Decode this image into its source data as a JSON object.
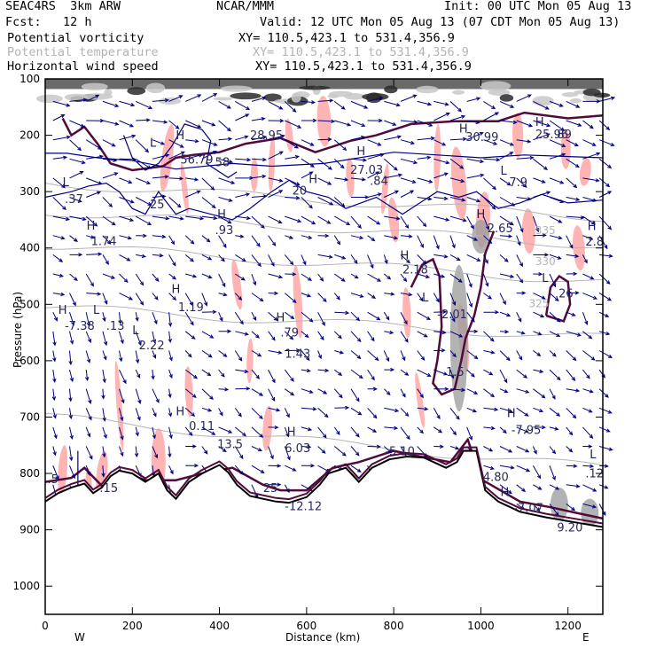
{
  "header": {
    "model": "SEAC4RS  3km ARW",
    "org": "NCAR/MMM",
    "init": "Init: 00 UTC Mon 05 Aug 13",
    "fcst": "Fcst:   12 h",
    "valid": "Valid: 12 UTC Mon 05 Aug 13 (07 CDT Mon 05 Aug 13)",
    "fields": [
      {
        "name": "Potential vorticity",
        "xy": "XY= 110.5,423.1 to 531.4,356.9",
        "color": "#000000"
      },
      {
        "name": "Potential temperature",
        "xy": "XY= 110.5,423.1 to 531.4,356.9",
        "color": "#b4b4b4"
      },
      {
        "name": "Horizontal wind speed",
        "xy": "XY= 110.5,423.1 to 531.4,356.9",
        "color": "#000000"
      }
    ]
  },
  "colors": {
    "pv_fill": "#ffb4b4",
    "pv_contour": "#500a3c",
    "theta": "#b4b4b4",
    "wind": "#000080",
    "terrain": "#000000",
    "shade": "#9a9a9a"
  },
  "chart_data": {
    "type": "cross-section",
    "ylabel": "Pressure (hPa)",
    "xlabel": "Distance (km)",
    "xlim": [
      0,
      1280
    ],
    "ylim": [
      100,
      1050
    ],
    "xticks": [
      0,
      200,
      400,
      600,
      800,
      1000,
      1200
    ],
    "yticks": [
      100,
      200,
      300,
      400,
      500,
      600,
      700,
      800,
      900,
      1000
    ],
    "x_end_labels": {
      "left": "W",
      "right": "E"
    },
    "terrain_km_hpa": [
      [
        0,
        850
      ],
      [
        30,
        835
      ],
      [
        60,
        825
      ],
      [
        90,
        818
      ],
      [
        110,
        835
      ],
      [
        130,
        825
      ],
      [
        150,
        805
      ],
      [
        170,
        795
      ],
      [
        200,
        800
      ],
      [
        230,
        815
      ],
      [
        260,
        800
      ],
      [
        280,
        830
      ],
      [
        300,
        845
      ],
      [
        330,
        815
      ],
      [
        360,
        800
      ],
      [
        400,
        785
      ],
      [
        420,
        798
      ],
      [
        440,
        820
      ],
      [
        470,
        840
      ],
      [
        500,
        845
      ],
      [
        530,
        850
      ],
      [
        560,
        852
      ],
      [
        600,
        842
      ],
      [
        630,
        820
      ],
      [
        650,
        800
      ],
      [
        690,
        790
      ],
      [
        720,
        815
      ],
      [
        750,
        790
      ],
      [
        790,
        775
      ],
      [
        830,
        770
      ],
      [
        870,
        772
      ],
      [
        920,
        790
      ],
      [
        945,
        780
      ],
      [
        960,
        760
      ],
      [
        990,
        760
      ],
      [
        1010,
        830
      ],
      [
        1040,
        850
      ],
      [
        1090,
        868
      ],
      [
        1150,
        878
      ],
      [
        1210,
        886
      ],
      [
        1280,
        895
      ]
    ],
    "wind_speed_labels": [
      {
        "text": "28.95",
        "x": 470,
        "p": 207
      },
      {
        "text": "30.99",
        "x": 965,
        "p": 210
      },
      {
        "text": "25.96",
        "x": 1125,
        "p": 205
      },
      {
        "text": "89",
        "x": 1175,
        "p": 205
      },
      {
        "text": "56.79",
        "x": 310,
        "p": 250
      },
      {
        "text": "58",
        "x": 390,
        "p": 255
      },
      {
        "text": "27.03",
        "x": 700,
        "p": 268
      },
      {
        "text": "20",
        "x": 567,
        "p": 305
      },
      {
        "text": ".84",
        "x": 745,
        "p": 288
      },
      {
        "text": "7.9",
        "x": 1065,
        "p": 290
      },
      {
        "text": ".37",
        "x": 45,
        "p": 320
      },
      {
        "text": "25",
        "x": 240,
        "p": 330
      },
      {
        "text": ".93",
        "x": 390,
        "p": 375
      },
      {
        "text": "1.74",
        "x": 105,
        "p": 395
      },
      {
        "text": "2.18",
        "x": 820,
        "p": 445
      },
      {
        "text": "2.65",
        "x": 1015,
        "p": 372
      },
      {
        "text": "2.8",
        "x": 1240,
        "p": 396
      },
      {
        "text": "1.19",
        "x": 305,
        "p": 512
      },
      {
        "text": "-2.01",
        "x": 900,
        "p": 525
      },
      {
        "text": ".26",
        "x": 1170,
        "p": 488
      },
      {
        "text": "-7.38",
        "x": 45,
        "p": 545
      },
      {
        "text": ".13",
        "x": 140,
        "p": 545
      },
      {
        "text": "2.22",
        "x": 215,
        "p": 580
      },
      {
        "text": ".79",
        "x": 540,
        "p": 557
      },
      {
        "text": "1.43",
        "x": 550,
        "p": 595
      },
      {
        "text": "1.5",
        "x": 920,
        "p": 627
      },
      {
        "text": "0.11",
        "x": 330,
        "p": 723
      },
      {
        "text": "13.5",
        "x": 395,
        "p": 755
      },
      {
        "text": "6.03",
        "x": 550,
        "p": 762
      },
      {
        "text": "-5.10",
        "x": 780,
        "p": 768
      },
      {
        "text": "-7.95",
        "x": 1070,
        "p": 730
      },
      {
        "text": ".12",
        "x": 1240,
        "p": 807
      },
      {
        "text": "4.80",
        "x": 1005,
        "p": 813
      },
      {
        "text": ".5",
        "x": 5,
        "p": 817
      },
      {
        "text": ".15",
        "x": 125,
        "p": 833
      },
      {
        "text": "25",
        "x": 500,
        "p": 833
      },
      {
        "text": "-12.12",
        "x": 550,
        "p": 865
      },
      {
        "text": "-7.07",
        "x": 1075,
        "p": 868
      },
      {
        "text": "9.20",
        "x": 1175,
        "p": 903
      }
    ],
    "extrema_markers": [
      {
        "text": "H",
        "x": 300,
        "p": 207
      },
      {
        "text": "H",
        "x": 950,
        "p": 195
      },
      {
        "text": "H",
        "x": 1125,
        "p": 183
      },
      {
        "text": "L",
        "x": 240,
        "p": 220
      },
      {
        "text": "H",
        "x": 715,
        "p": 235
      },
      {
        "text": "H",
        "x": 605,
        "p": 285
      },
      {
        "text": "L",
        "x": 1045,
        "p": 270
      },
      {
        "text": "L",
        "x": 40,
        "p": 290
      },
      {
        "text": "H",
        "x": 395,
        "p": 347
      },
      {
        "text": "H",
        "x": 95,
        "p": 367
      },
      {
        "text": "H",
        "x": 815,
        "p": 420
      },
      {
        "text": "H",
        "x": 990,
        "p": 347
      },
      {
        "text": "H",
        "x": 1245,
        "p": 368
      },
      {
        "text": "H",
        "x": 290,
        "p": 480
      },
      {
        "text": "L",
        "x": 865,
        "p": 495
      },
      {
        "text": "L",
        "x": 1140,
        "p": 460
      },
      {
        "text": "H",
        "x": 30,
        "p": 517
      },
      {
        "text": "L",
        "x": 110,
        "p": 517
      },
      {
        "text": "L",
        "x": 200,
        "p": 553
      },
      {
        "text": "H",
        "x": 530,
        "p": 530
      },
      {
        "text": "H",
        "x": 300,
        "p": 697
      },
      {
        "text": "H",
        "x": 555,
        "p": 733
      },
      {
        "text": "H",
        "x": 1060,
        "p": 700
      },
      {
        "text": "L",
        "x": 1250,
        "p": 773
      },
      {
        "text": "H",
        "x": 1045,
        "p": 840
      }
    ],
    "theta_labels": [
      {
        "text": "335",
        "x": 1125,
        "p": 375
      },
      {
        "text": "330",
        "x": 1125,
        "p": 430
      },
      {
        "text": "325",
        "x": 1110,
        "p": 505
      }
    ]
  }
}
